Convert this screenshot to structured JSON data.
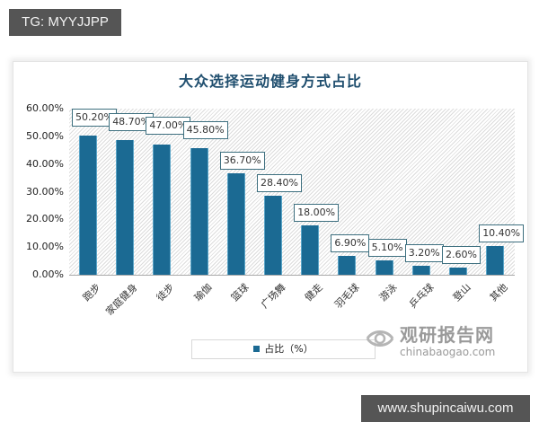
{
  "overlay": {
    "top_tag": "TG: MYYJJPP",
    "bottom_tag": "www.shupincaiwu.com"
  },
  "chart_data": {
    "type": "bar",
    "title": "大众选择运动健身方式占比",
    "categories": [
      "跑步",
      "家庭健身",
      "徒步",
      "瑜伽",
      "篮球",
      "广场舞",
      "健走",
      "羽毛球",
      "游泳",
      "乒乓球",
      "登山",
      "其他"
    ],
    "values": [
      50.2,
      48.7,
      47.0,
      45.8,
      36.7,
      28.4,
      18.0,
      6.9,
      5.1,
      3.2,
      2.6,
      10.4
    ],
    "value_labels": [
      "50.20%",
      "48.70%",
      "47.00%",
      "45.80%",
      "36.70%",
      "28.40%",
      "18.00%",
      "6.90%",
      "5.10%",
      "3.20%",
      "2.60%",
      "10.40%"
    ],
    "series": [
      {
        "name": "占比（%）",
        "color": "#1b6a93"
      }
    ],
    "xlabel": "",
    "ylabel": "",
    "ylim": [
      0,
      60
    ],
    "yticks": [
      "60.00%",
      "50.00%",
      "40.00%",
      "30.00%",
      "20.00%",
      "10.00%",
      "0.00%"
    ],
    "grid": false,
    "legend_position": "bottom",
    "legend": [
      "占比（%）"
    ]
  },
  "watermark": {
    "cn": "观研报告网",
    "en": "chinabaogao.com"
  }
}
